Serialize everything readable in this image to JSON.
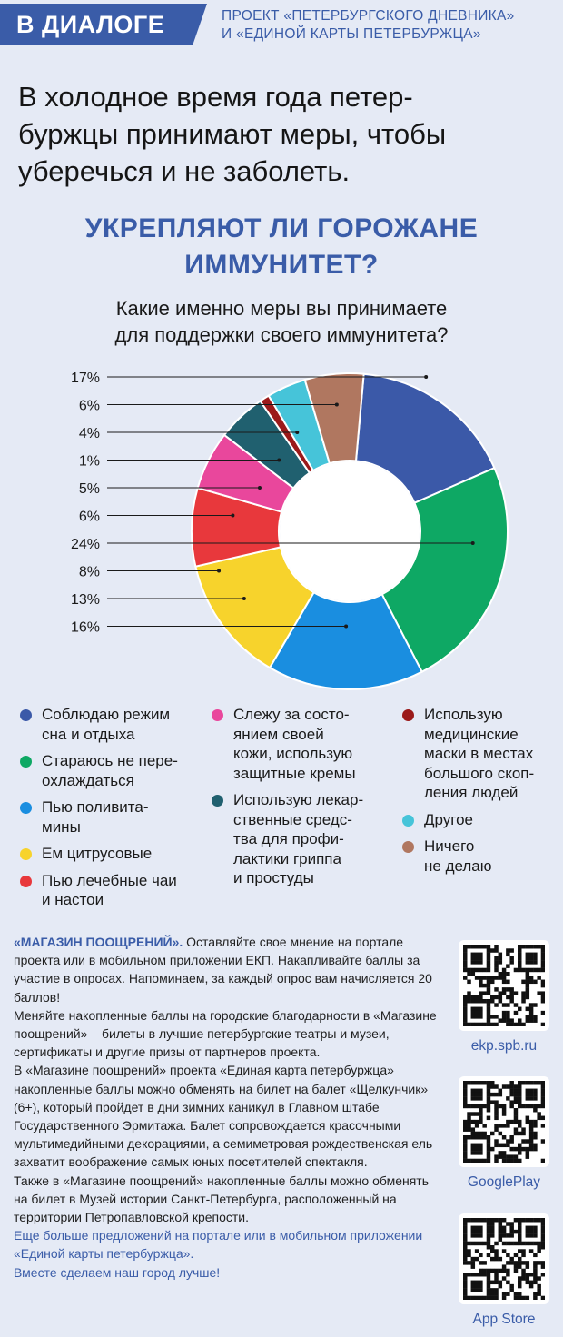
{
  "header": {
    "tag": "В ДИАЛОГЕ",
    "project_line1": "ПРОЕКТ «ПЕТЕРБУРГСКОГО ДНЕВНИКА»",
    "project_line2": "И «ЕДИНОЙ КАРТЫ ПЕТЕРБУРЖЦА»"
  },
  "intro": {
    "line1": "В холодное время года петер-",
    "line2": "буржцы принимают меры, чтобы",
    "line3": "уберечься и не заболеть."
  },
  "chart_data": {
    "type": "donut",
    "title_line1": "УКРЕПЛЯЮТ ЛИ ГОРОЖАНЕ",
    "title_line2": "ИММУНИТЕТ?",
    "subtitle_line1": "Какие именно меры вы принимаете",
    "subtitle_line2": "для поддержки своего иммунитета?",
    "slices": [
      {
        "name": "Соблюдаю режим сна и отдыха",
        "value": 17,
        "label": "17%",
        "color": "#3b59a8"
      },
      {
        "name": "Стараюсь не переохлаждаться",
        "value": 24,
        "label": "24%",
        "color": "#0ea864"
      },
      {
        "name": "Пью поливитамины",
        "value": 16,
        "label": "16%",
        "color": "#1a8ee0"
      },
      {
        "name": "Ем цитрусовые",
        "value": 13,
        "label": "13%",
        "color": "#f7d32c"
      },
      {
        "name": "Пью лечебные чаи и настои",
        "value": 8,
        "label": "8%",
        "color": "#e8383c"
      },
      {
        "name": "Слежу за состоянием своей кожи, использую защитные кремы",
        "value": 6,
        "label": "6%",
        "color": "#e9479c"
      },
      {
        "name": "Использую лекарственные средства для профилактики гриппа и простуды",
        "value": 5,
        "label": "5%",
        "color": "#20606f"
      },
      {
        "name": "Использую медицинские маски в местах большого скопления людей",
        "value": 1,
        "label": "1%",
        "color": "#9b1a1a"
      },
      {
        "name": "Другое",
        "value": 4,
        "label": "4%",
        "color": "#46c4d9"
      },
      {
        "name": "Ничего не делаю",
        "value": 6,
        "label": "6%",
        "color": "#b07760"
      }
    ],
    "left_labels": [
      "17%",
      "6%",
      "4%",
      "1%",
      "5%",
      "6%",
      "24%",
      "8%",
      "13%",
      "16%"
    ],
    "legend_placement": "bottom"
  },
  "legend": {
    "col1": [
      {
        "l1": "Соблюдаю режим",
        "l2": "сна и отдыха",
        "color": "#3b59a8"
      },
      {
        "l1": "Стараюсь не пере-",
        "l2": "охлаждаться",
        "color": "#0ea864"
      },
      {
        "l1": "Пью поливита-",
        "l2": "мины",
        "color": "#1a8ee0"
      },
      {
        "l1": "Ем цитрусовые",
        "color": "#f7d32c"
      },
      {
        "l1": "Пью лечебные чаи",
        "l2": "и настои",
        "color": "#e8383c"
      }
    ],
    "col2": [
      {
        "l1": "Слежу за состо-",
        "l2": "янием своей",
        "l3": "кожи, использую",
        "l4": "защитные кремы",
        "color": "#e9479c"
      },
      {
        "l1": "Использую лекар-",
        "l2": "ственные средс-",
        "l3": "тва для профи-",
        "l4": "лактики гриппа",
        "l5": "и простуды",
        "color": "#20606f"
      }
    ],
    "col3": [
      {
        "l1": "Использую",
        "l2": "медицинские",
        "l3": "маски в местах",
        "l4": "большого скоп-",
        "l5": "ления людей",
        "color": "#9b1a1a"
      },
      {
        "l1": "Другое",
        "color": "#46c4d9"
      },
      {
        "l1": "Ничего",
        "l2": "не делаю",
        "color": "#b07760"
      }
    ]
  },
  "promo": {
    "heading": "«МАГАЗИН ПООЩРЕНИЙ».",
    "p1": " Оставляйте свое мнение на портале проекта или в мобильном приложении ЕКП. Накапливайте баллы за участие в опросах. Напоминаем, за каждый опрос вам начисляется 20 баллов!",
    "p2": "Меняйте накопленные баллы на городские благодарности в «Магазине поощрений» – билеты в лучшие петербургские театры и музеи, сертификаты и другие призы от партнеров проекта.",
    "p3": "В «Магазине поощрений» проекта «Единая карта петербуржца» накопленные баллы можно обменять на билет на балет «Щелкунчик» (6+), который пройдет в дни зимних каникул в Главном штабе Государственного Эрмитажа. Балет сопровождается красочными мультимедийными декорациями, а семиметровая рождественская ель захватит воображение самых юных посетителей спектакля.",
    "p4": "Также в «Магазине поощрений» накопленные баллы можно обменять на билет в Музей истории Санкт-Петербурга, расположенный на территории Петропавловской крепости.",
    "p5": "Еще больше предложений на портале или в мобильном приложении «Единой карты петербуржца».",
    "p6": "Вместе сделаем наш город лучше!"
  },
  "qr": {
    "site": "ekp.spb.ru",
    "google": "GooglePlay",
    "apple": "App Store"
  }
}
